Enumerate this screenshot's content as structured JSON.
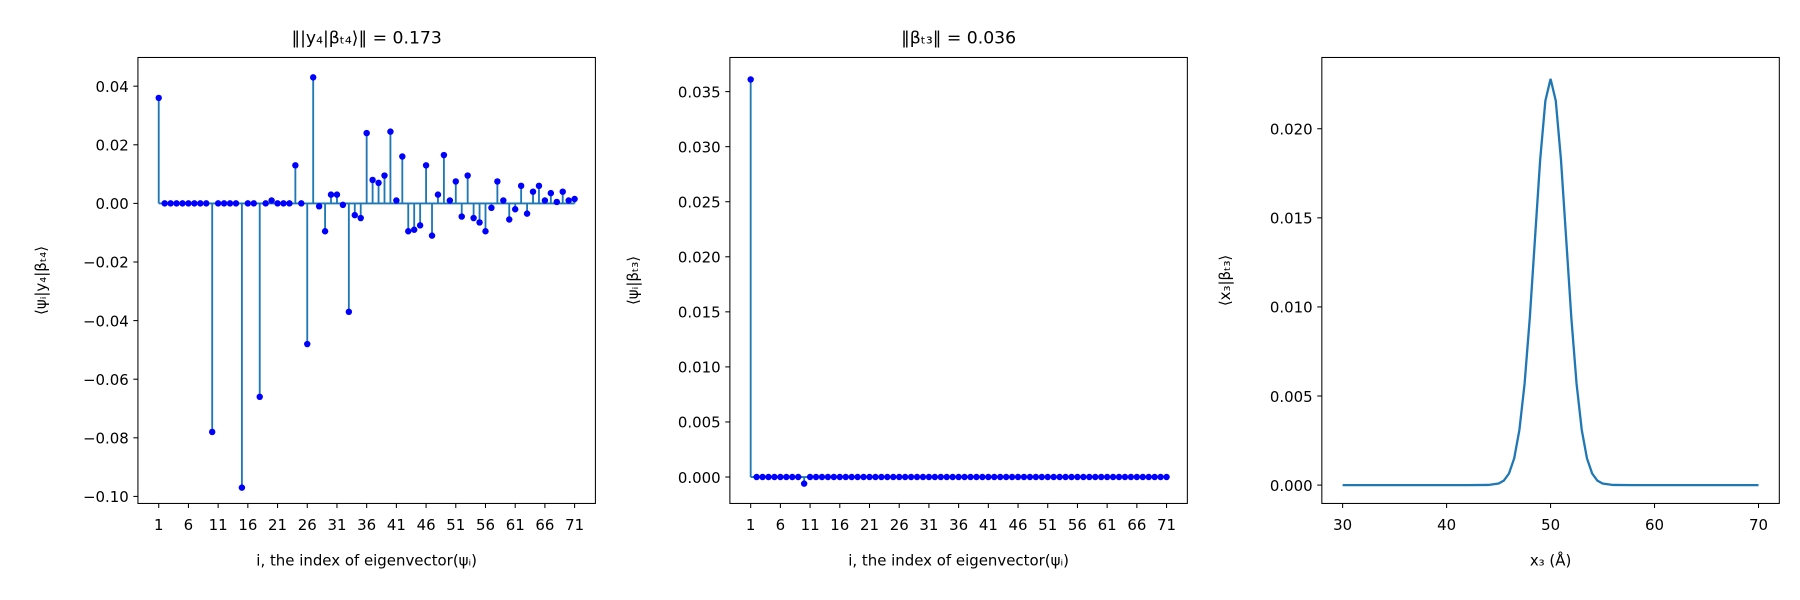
{
  "chart_data": [
    {
      "type": "stem",
      "title": "‖|y₄|βₜ₄⟩‖ = 0.173",
      "xlabel": "i, the index of eigenvector(ψᵢ)",
      "ylabel": "⟨ψᵢ|y₄|βₜ₄⟩",
      "stem_color": "#1f77b4",
      "marker_color": "#0000ff",
      "x": [
        1,
        2,
        3,
        4,
        5,
        6,
        7,
        8,
        9,
        10,
        11,
        12,
        13,
        14,
        15,
        16,
        17,
        18,
        19,
        20,
        21,
        22,
        23,
        24,
        25,
        26,
        27,
        28,
        29,
        30,
        31,
        32,
        33,
        34,
        35,
        36,
        37,
        38,
        39,
        40,
        41,
        42,
        43,
        44,
        45,
        46,
        47,
        48,
        49,
        50,
        51,
        52,
        53,
        54,
        55,
        56,
        57,
        58,
        59,
        60,
        61,
        62,
        63,
        64,
        65,
        66,
        67,
        68,
        69,
        70,
        71
      ],
      "values": [
        0.036,
        0,
        0,
        0,
        0,
        0,
        0,
        0,
        0,
        -0.078,
        0,
        0,
        0,
        0,
        -0.097,
        0,
        0,
        -0.066,
        0,
        0.001,
        0,
        0,
        0,
        0.013,
        0,
        -0.048,
        0.043,
        -0.001,
        -0.0095,
        0.003,
        0.003,
        -0.0005,
        -0.037,
        -0.004,
        -0.005,
        0.024,
        0.008,
        0.007,
        0.0095,
        0.0245,
        0.001,
        0.016,
        -0.0095,
        -0.009,
        -0.0075,
        0.013,
        -0.011,
        0.003,
        0.0165,
        0.001,
        0.0075,
        -0.0045,
        0.0095,
        -0.005,
        -0.0065,
        -0.0095,
        -0.0015,
        0.0075,
        0.001,
        -0.0055,
        -0.002,
        0.006,
        -0.0035,
        0.004,
        0.006,
        0.001,
        0.0035,
        0.0005,
        0.004,
        0.001,
        0.0015
      ],
      "xlim": [
        -2.5,
        74.5
      ],
      "xticks": [
        1,
        6,
        11,
        16,
        21,
        26,
        31,
        36,
        41,
        46,
        51,
        56,
        61,
        66,
        71
      ],
      "ylim": [
        -0.1024,
        0.0498
      ],
      "yticks": [
        {
          "value": -0.1,
          "label": "−0.10"
        },
        {
          "value": -0.08,
          "label": "−0.08"
        },
        {
          "value": -0.06,
          "label": "−0.06"
        },
        {
          "value": -0.04,
          "label": "−0.04"
        },
        {
          "value": -0.02,
          "label": "−0.02"
        },
        {
          "value": 0,
          "label": "0.00"
        },
        {
          "value": 0.02,
          "label": "0.02"
        },
        {
          "value": 0.04,
          "label": "0.04"
        }
      ]
    },
    {
      "type": "stem",
      "title": "‖βₜ₃‖ = 0.036",
      "xlabel": "i, the index of eigenvector(ψᵢ)",
      "ylabel": "⟨ψᵢ|βₜ₃⟩",
      "stem_color": "#1f77b4",
      "marker_color": "#0000ff",
      "x": [
        1,
        2,
        3,
        4,
        5,
        6,
        7,
        8,
        9,
        10,
        11,
        12,
        13,
        14,
        15,
        16,
        17,
        18,
        19,
        20,
        21,
        22,
        23,
        24,
        25,
        26,
        27,
        28,
        29,
        30,
        31,
        32,
        33,
        34,
        35,
        36,
        37,
        38,
        39,
        40,
        41,
        42,
        43,
        44,
        45,
        46,
        47,
        48,
        49,
        50,
        51,
        52,
        53,
        54,
        55,
        56,
        57,
        58,
        59,
        60,
        61,
        62,
        63,
        64,
        65,
        66,
        67,
        68,
        69,
        70,
        71
      ],
      "values": [
        0.0361,
        0,
        0,
        0,
        0,
        0,
        0,
        0,
        0,
        -0.0006,
        0,
        0,
        0,
        0,
        0,
        0,
        0,
        0,
        0,
        0,
        0,
        0,
        0,
        0,
        0,
        0,
        0,
        0,
        0,
        0,
        0,
        0,
        0,
        0,
        0,
        0,
        0,
        0,
        0,
        0,
        0,
        0,
        0,
        0,
        0,
        0,
        0,
        0,
        0,
        0,
        0,
        0,
        0,
        0,
        0,
        0,
        0,
        0,
        0,
        0,
        0,
        0,
        0,
        0,
        0,
        0,
        0,
        0,
        0,
        0,
        0
      ],
      "xlim": [
        -2.5,
        74.5
      ],
      "xticks": [
        1,
        6,
        11,
        16,
        21,
        26,
        31,
        36,
        41,
        46,
        51,
        56,
        61,
        66,
        71
      ],
      "ylim": [
        -0.0024,
        0.0381
      ],
      "yticks": [
        {
          "value": 0,
          "label": "0.000"
        },
        {
          "value": 0.005,
          "label": "0.005"
        },
        {
          "value": 0.01,
          "label": "0.010"
        },
        {
          "value": 0.015,
          "label": "0.015"
        },
        {
          "value": 0.02,
          "label": "0.020"
        },
        {
          "value": 0.025,
          "label": "0.025"
        },
        {
          "value": 0.03,
          "label": "0.030"
        },
        {
          "value": 0.035,
          "label": "0.035"
        }
      ]
    },
    {
      "type": "line",
      "xlabel": "x₃ (Å)",
      "ylabel": "⟨x₃|βₜ₃⟩",
      "color": "#1f77b4",
      "x": [
        30,
        32,
        34,
        36,
        38,
        40,
        42,
        44,
        45,
        45.5,
        46,
        46.5,
        47,
        47.5,
        48,
        48.5,
        49,
        49.5,
        50,
        50.5,
        51,
        51.5,
        52,
        52.5,
        53,
        53.5,
        54,
        54.5,
        55,
        56,
        58,
        60,
        62,
        64,
        66,
        68,
        70
      ],
      "values": [
        0,
        0,
        0,
        0,
        0,
        0,
        0,
        8e-06,
        9e-05,
        0.00025,
        0.00065,
        0.0015,
        0.00309,
        0.00569,
        0.00937,
        0.01383,
        0.01826,
        0.02157,
        0.0228,
        0.02157,
        0.01826,
        0.01383,
        0.00937,
        0.00569,
        0.00309,
        0.0015,
        0.00065,
        0.00025,
        9e-05,
        8e-06,
        0,
        0,
        0,
        0,
        0,
        0,
        0
      ],
      "xlim": [
        28,
        72
      ],
      "xticks": [
        30,
        40,
        50,
        60,
        70
      ],
      "ylim": [
        -0.00103,
        0.024
      ],
      "yticks": [
        {
          "value": 0,
          "label": "0.000"
        },
        {
          "value": 0.005,
          "label": "0.005"
        },
        {
          "value": 0.01,
          "label": "0.010"
        },
        {
          "value": 0.015,
          "label": "0.015"
        },
        {
          "value": 0.02,
          "label": "0.020"
        }
      ]
    }
  ]
}
